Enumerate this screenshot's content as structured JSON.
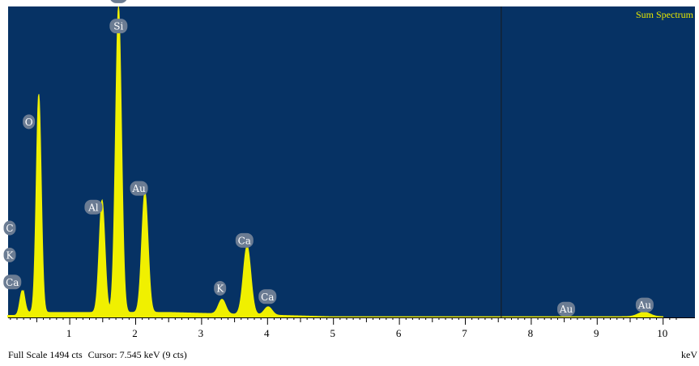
{
  "chart_data": {
    "type": "area",
    "title": "Sum Spectrum",
    "xlabel": "keV",
    "ylabel": "",
    "xlim": [
      0,
      10.2
    ],
    "ylim": [
      0,
      1494
    ],
    "x_ticks": [
      "1",
      "2",
      "3",
      "4",
      "5",
      "6",
      "7",
      "8",
      "9",
      "10"
    ],
    "x_tick_values": [
      1,
      2,
      3,
      4,
      5,
      6,
      7,
      8,
      9,
      10
    ],
    "cursor_kev": 7.545,
    "background_counts": 24,
    "peaks": [
      {
        "element": "C",
        "kev": 0.28,
        "counts": 120
      },
      {
        "element": "O",
        "kev": 0.53,
        "counts": 1050
      },
      {
        "element": "Al",
        "kev": 1.49,
        "counts": 540
      },
      {
        "element": "Si",
        "kev": 1.74,
        "counts": 1470
      },
      {
        "element": "Au",
        "kev": 2.14,
        "counts": 580
      },
      {
        "element": "K",
        "kev": 3.31,
        "counts": 70
      },
      {
        "element": "Ca",
        "kev": 3.69,
        "counts": 330
      },
      {
        "element": "Ca",
        "kev": 4.01,
        "counts": 40
      },
      {
        "element": "Au",
        "kev": 9.71,
        "counts": 22
      }
    ],
    "labels": [
      {
        "text": "Au",
        "kev": 1.74,
        "counts": 1545
      },
      {
        "text": "Si",
        "kev": 1.74,
        "counts": 1400
      },
      {
        "text": "O",
        "kev": 0.38,
        "counts": 940
      },
      {
        "text": "C",
        "kev": 0.09,
        "counts": 430
      },
      {
        "text": "K",
        "kev": 0.09,
        "counts": 300
      },
      {
        "text": "Ca",
        "kev": 0.13,
        "counts": 170
      },
      {
        "text": "Al",
        "kev": 1.36,
        "counts": 530
      },
      {
        "text": "Au",
        "kev": 2.05,
        "counts": 620
      },
      {
        "text": "K",
        "kev": 3.28,
        "counts": 140
      },
      {
        "text": "Ca",
        "kev": 3.65,
        "counts": 370
      },
      {
        "text": "Ca",
        "kev": 4.0,
        "counts": 100
      },
      {
        "text": "Au",
        "kev": 8.53,
        "counts": 40
      },
      {
        "text": "Au",
        "kev": 9.72,
        "counts": 60
      }
    ],
    "colors": {
      "background": "#063264",
      "spectrum": "#f0f000",
      "label_fill": "#6b7c93",
      "label_text": "#ffffff",
      "cursor": "#1a1a1a",
      "title": "#e8e800"
    }
  },
  "status": {
    "full_scale": "Full Scale 1494 cts",
    "cursor": "Cursor: 7.545 keV (9 cts)",
    "unit": "keV"
  }
}
